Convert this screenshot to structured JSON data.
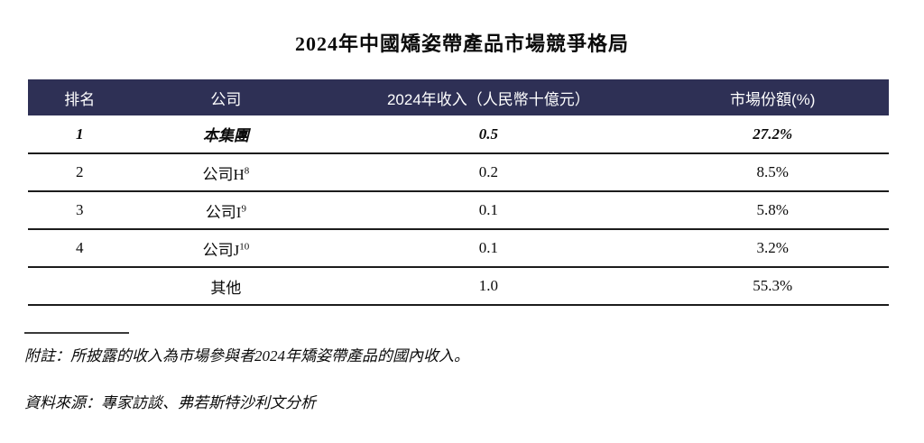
{
  "title": "2024年中國矯姿帶產品市場競爭格局",
  "table": {
    "headers": {
      "rank": "排名",
      "company": "公司",
      "revenue": "2024年收入（人民幣十億元）",
      "share": "市場份額(%)"
    },
    "rows": [
      {
        "rank": "1",
        "company": "本集團",
        "company_sup": "",
        "revenue": "0.5",
        "share": "27.2%"
      },
      {
        "rank": "2",
        "company": "公司H",
        "company_sup": "8",
        "revenue": "0.2",
        "share": "8.5%"
      },
      {
        "rank": "3",
        "company": "公司I",
        "company_sup": "9",
        "revenue": "0.1",
        "share": "5.8%"
      },
      {
        "rank": "4",
        "company": "公司J",
        "company_sup": "10",
        "revenue": "0.1",
        "share": "3.2%"
      },
      {
        "rank": "",
        "company": "其他",
        "company_sup": "",
        "revenue": "1.0",
        "share": "55.3%"
      }
    ]
  },
  "footnotes": {
    "note": "附註：所披露的收入為市場參與者2024年矯姿帶產品的國內收入。",
    "source": "資料來源：專家訪談、弗若斯特沙利文分析"
  },
  "colors": {
    "header_bg": "#2e3055",
    "header_text": "#ffffff",
    "body_text": "#000000",
    "rule": "#1c1c1c"
  }
}
